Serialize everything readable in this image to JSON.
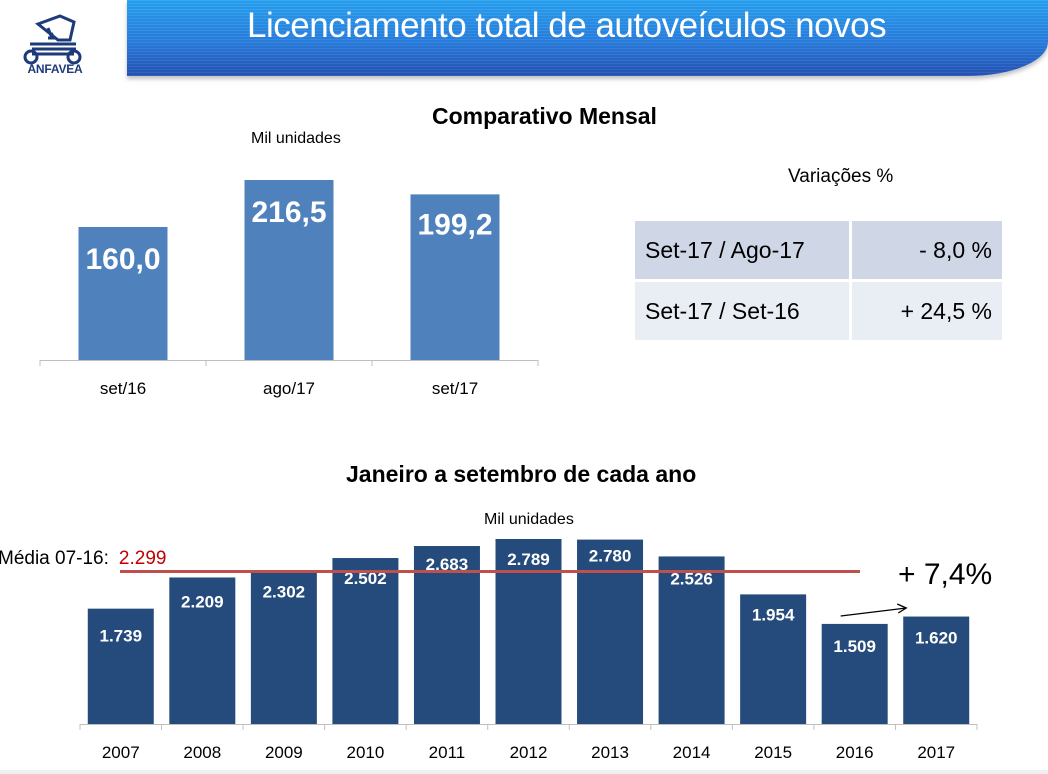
{
  "header": {
    "logo_text": "ANFAVEA",
    "title": "Licenciamento total de autoveículos novos"
  },
  "colors": {
    "header_blue": "#2a7fe0",
    "monthly_bar": "#4f81bd",
    "annual_bar": "#254b7c",
    "average_line": "#c0504d",
    "average_value": "#c00000",
    "table_row1": "#cfd6e6",
    "table_row2": "#e9edf4"
  },
  "monthly": {
    "title": "Comparativo Mensal",
    "unit": "Mil unidades"
  },
  "variations": {
    "title": "Variações %",
    "rows": [
      {
        "label": "Set-17 / Ago-17",
        "value": "- 8,0 %"
      },
      {
        "label": "Set-17 / Set-16",
        "value": "+ 24,5 %"
      }
    ]
  },
  "annual": {
    "title": "Janeiro a setembro de cada ano",
    "unit": "Mil unidades",
    "average_label": "Média 07-16:",
    "average_value_text": "2.299",
    "growth_annotation": "+ 7,4%",
    "growth_arrow_icon": "arrow-right-icon"
  },
  "chart_data": [
    {
      "type": "bar",
      "title": "Comparativo Mensal",
      "ylabel": "Mil unidades",
      "categories": [
        "set/16",
        "ago/17",
        "set/17"
      ],
      "values": [
        160.0,
        216.5,
        199.2
      ],
      "labels": [
        "160,0",
        "216,5",
        "199,2"
      ],
      "ylim": [
        0,
        216.5
      ],
      "grid": false
    },
    {
      "type": "bar",
      "title": "Janeiro a setembro de cada ano",
      "ylabel": "Mil unidades",
      "categories": [
        "2007",
        "2008",
        "2009",
        "2010",
        "2011",
        "2012",
        "2013",
        "2014",
        "2015",
        "2016",
        "2017"
      ],
      "values": [
        1739,
        2209,
        2302,
        2502,
        2683,
        2789,
        2780,
        2526,
        1954,
        1509,
        1620
      ],
      "labels": [
        "1.739",
        "2.209",
        "2.302",
        "2.502",
        "2.683",
        "2.789",
        "2.780",
        "2.526",
        "1.954",
        "1.509",
        "1.620"
      ],
      "reference_line": {
        "label": "Média 07-16:",
        "value": 2299
      },
      "ylim": [
        0,
        2789
      ],
      "grid": false
    }
  ]
}
